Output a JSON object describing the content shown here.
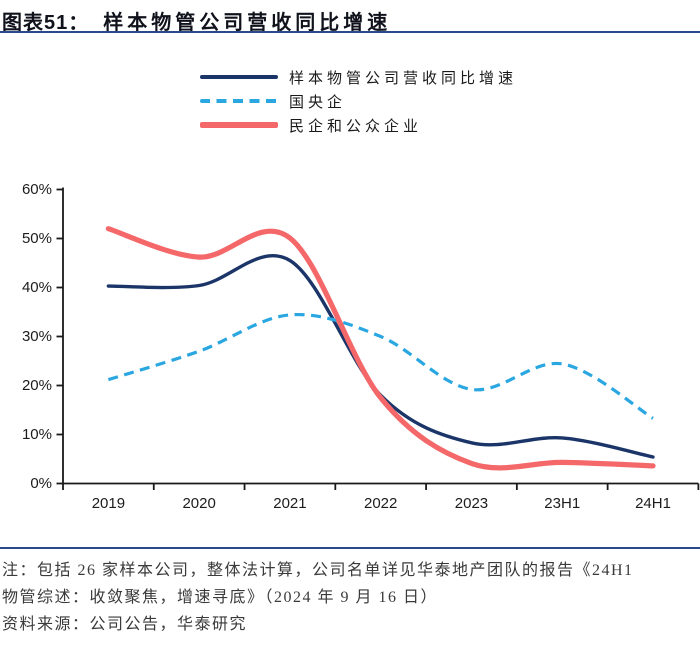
{
  "figure": {
    "label": "图表51：",
    "title": "样本物管公司营收同比增速"
  },
  "chart_data": {
    "type": "line",
    "categories": [
      "2019",
      "2020",
      "2021",
      "2022",
      "2023",
      "23H1",
      "24H1"
    ],
    "series": [
      {
        "name": "样本物管公司营收同比增速",
        "color": "#1b3569",
        "style": "solid",
        "width": 3.4,
        "values": [
          40.3,
          40.4,
          45.5,
          18.0,
          8.3,
          9.3,
          5.4
        ]
      },
      {
        "name": "国央企",
        "color": "#2aa7e1",
        "style": "dashed",
        "width": 3.2,
        "values": [
          21.2,
          27.0,
          34.4,
          30.0,
          19.2,
          24.4,
          13.3
        ]
      },
      {
        "name": "民企和公众企业",
        "color": "#f4686a",
        "style": "solid",
        "width": 5.2,
        "values": [
          52.0,
          46.2,
          50.1,
          17.5,
          4.1,
          4.3,
          3.6
        ]
      }
    ],
    "ytick_values": [
      0,
      10,
      20,
      30,
      40,
      50,
      60
    ],
    "ytick_labels": [
      "0%",
      "10%",
      "20%",
      "30%",
      "40%",
      "50%",
      "60%"
    ],
    "ylim": [
      0,
      60
    ],
    "xlabel": "",
    "ylabel": "",
    "grid": false,
    "legend_position": "top",
    "axis_color": "#1a1a1a"
  },
  "accent_color": "#2b4a8b",
  "notes": {
    "line1": "注：包括 26 家样本公司，整体法计算，公司名单详见华泰地产团队的报告《24H1",
    "line2": "物管综述：收敛聚焦，增速寻底》（2024 年 9 月 16 日）",
    "line3": "资料来源：公司公告，华泰研究"
  }
}
